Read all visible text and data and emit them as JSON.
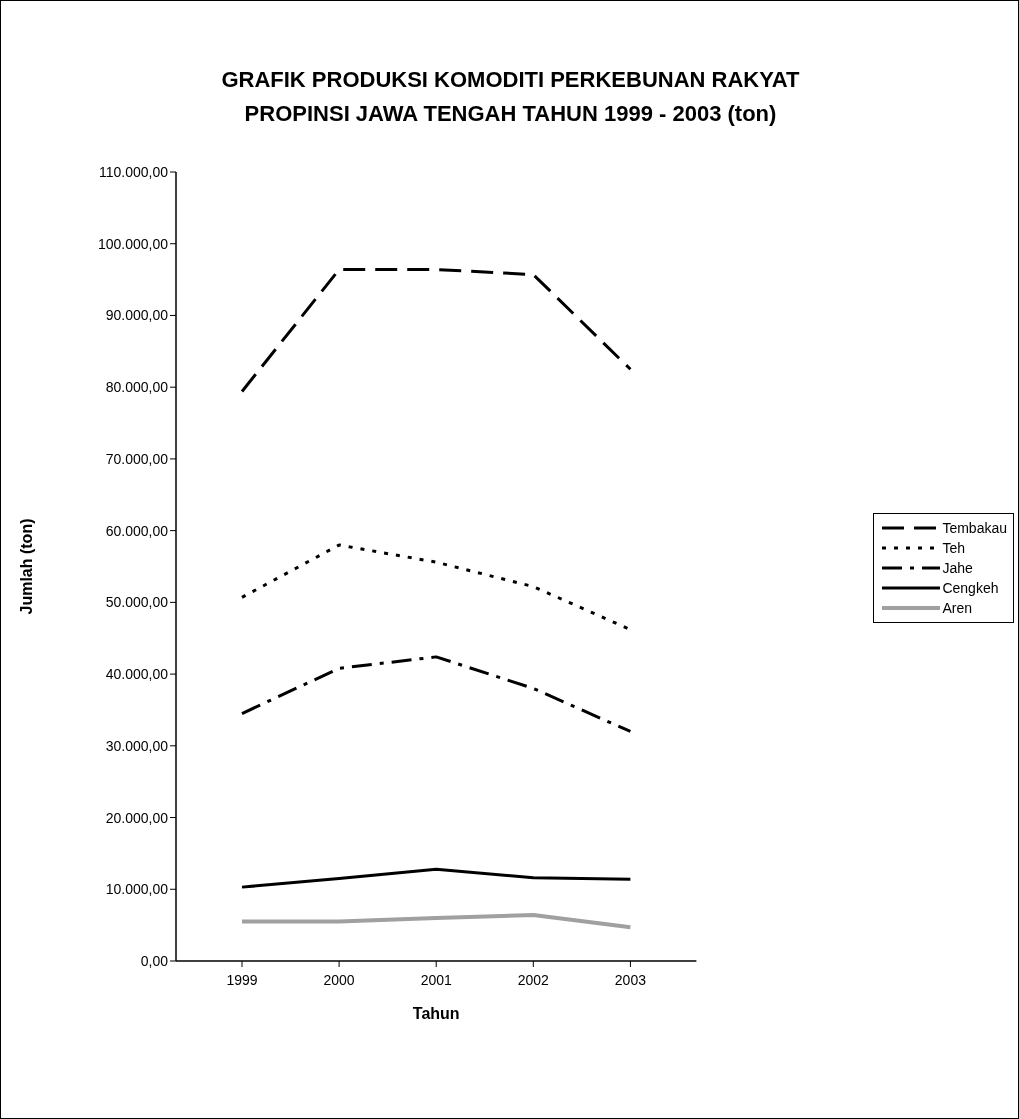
{
  "chart_data": {
    "type": "line",
    "title": "GRAFIK PRODUKSI KOMODITI PERKEBUNAN RAKYAT\nPROPINSI JAWA TENGAH TAHUN 1999 - 2003 (ton)",
    "xlabel": "Tahun",
    "ylabel": "Jumlah (ton)",
    "categories": [
      "1999",
      "2000",
      "2001",
      "2002",
      "2003"
    ],
    "series": [
      {
        "name": "Tembakau",
        "color": "#000000",
        "line_style": "dashed",
        "values": [
          79400,
          96400,
          96400,
          95700,
          82500
        ]
      },
      {
        "name": "Teh",
        "color": "#000000",
        "line_style": "dotted",
        "values": [
          50700,
          58000,
          55600,
          52200,
          46200
        ]
      },
      {
        "name": "Jahe",
        "color": "#000000",
        "line_style": "dashdot",
        "values": [
          34500,
          40800,
          42400,
          38000,
          32000
        ]
      },
      {
        "name": "Cengkeh",
        "color": "#000000",
        "line_style": "solid",
        "values": [
          10300,
          11500,
          12800,
          11600,
          11400
        ]
      },
      {
        "name": "Aren",
        "color": "#a0a0a0",
        "line_style": "solid",
        "values": [
          5500,
          5500,
          6000,
          6400,
          4700
        ]
      }
    ],
    "ylim": [
      0,
      110000
    ],
    "yticks": [
      {
        "value": 0,
        "label": "0,00"
      },
      {
        "value": 10000,
        "label": "10.000,00"
      },
      {
        "value": 20000,
        "label": "20.000,00"
      },
      {
        "value": 30000,
        "label": "30.000,00"
      },
      {
        "value": 40000,
        "label": "40.000,00"
      },
      {
        "value": 50000,
        "label": "50.000,00"
      },
      {
        "value": 60000,
        "label": "60.000,00"
      },
      {
        "value": 70000,
        "label": "70.000,00"
      },
      {
        "value": 80000,
        "label": "80.000,00"
      },
      {
        "value": 90000,
        "label": "90.000,00"
      },
      {
        "value": 100000,
        "label": "100.000,00"
      },
      {
        "value": 110000,
        "label": "110.000,00"
      }
    ],
    "grid": false,
    "legend": "right",
    "marker": "none"
  }
}
